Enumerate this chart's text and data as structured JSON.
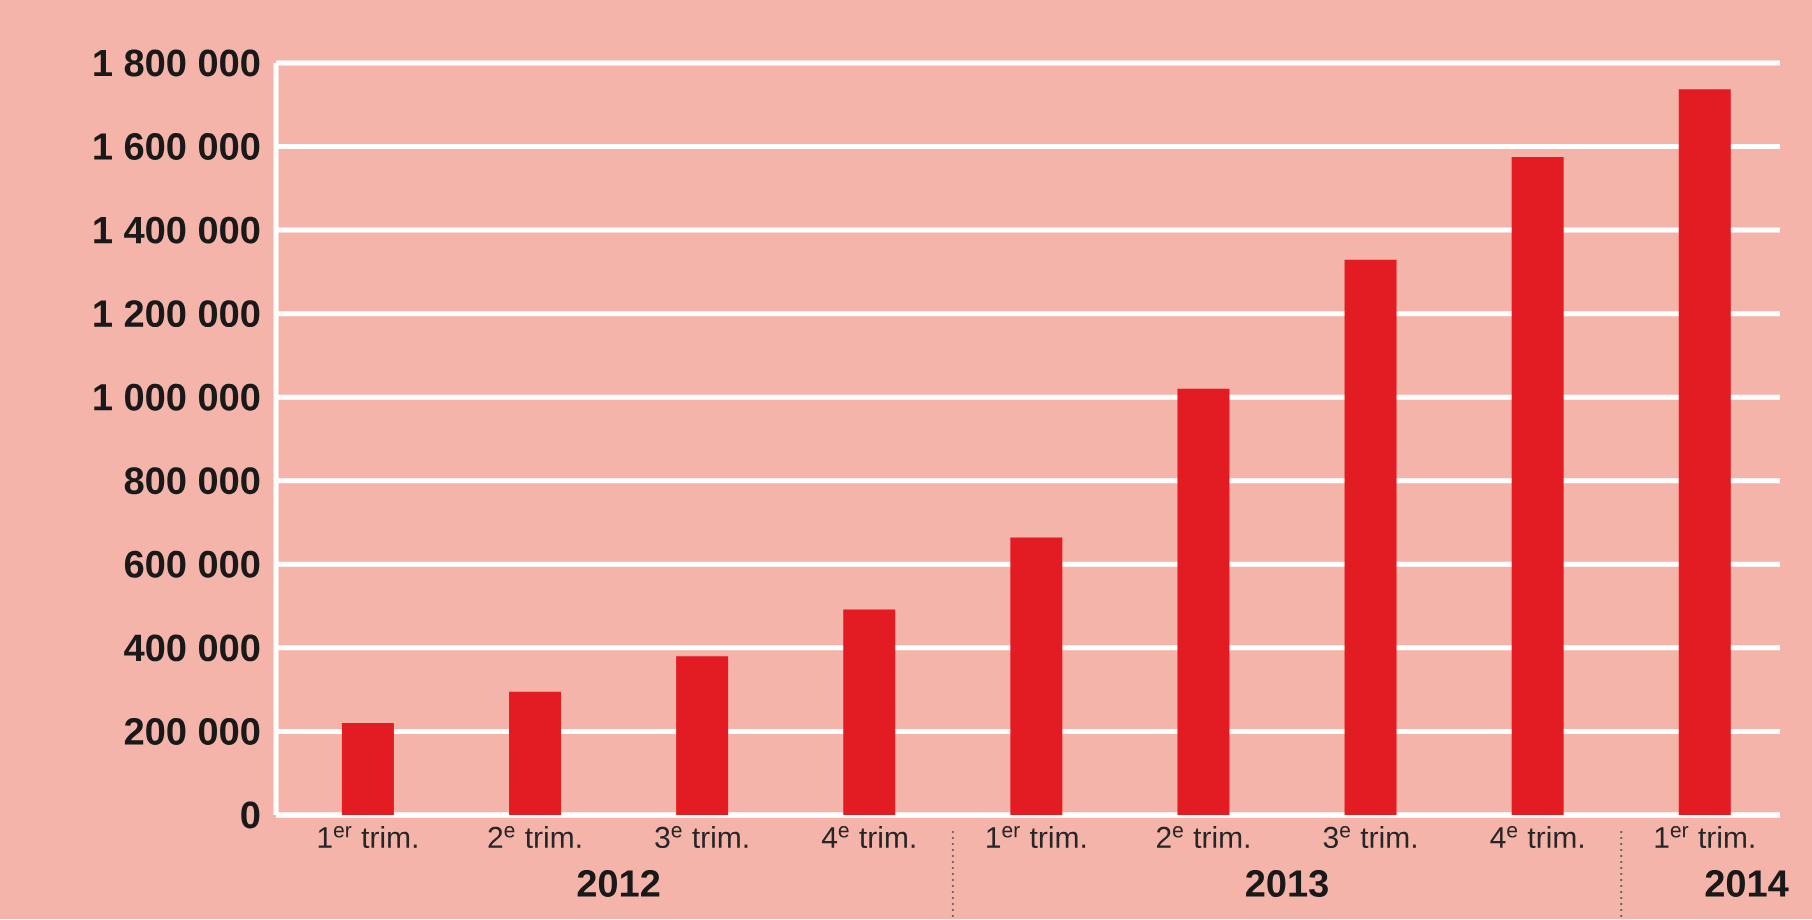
{
  "chart_data": {
    "type": "bar",
    "categories": [
      "1$^{er}$ trim.",
      "2$^{e}$ trim.",
      "3$^{e}$ trim.",
      "4$^{e}$ trim.",
      "1$^{er}$ trim.",
      "2$^{e}$ trim.",
      "3$^{e}$ trim.",
      "4$^{e}$ trim.",
      "1$^{er}$ trim."
    ],
    "values": [
      220000,
      295000,
      380000,
      492000,
      664000,
      1020000,
      1329000,
      1575000,
      1737000
    ],
    "color": "#e31b23",
    "ylim": [
      0,
      1800000
    ],
    "yticks": [
      0,
      {
        "value": 200000,
        "label": "200 000"
      },
      {
        "value": 400000,
        "label": "400 000"
      },
      {
        "value": 600000,
        "label": "600 000"
      },
      {
        "value": 800000,
        "label": "800 000"
      },
      {
        "value": 1000000,
        "label": "1 000 000"
      },
      {
        "value": 1200000,
        "label": "1 200 000"
      },
      {
        "value": 1400000,
        "label": "1 400 000"
      },
      {
        "value": 1600000,
        "label": "1 600 000"
      },
      {
        "value": 1800000,
        "label": "1 800 000"
      }
    ],
    "grid": "y",
    "annotations": [
      "2012",
      "2013",
      "2014"
    ]
  }
}
